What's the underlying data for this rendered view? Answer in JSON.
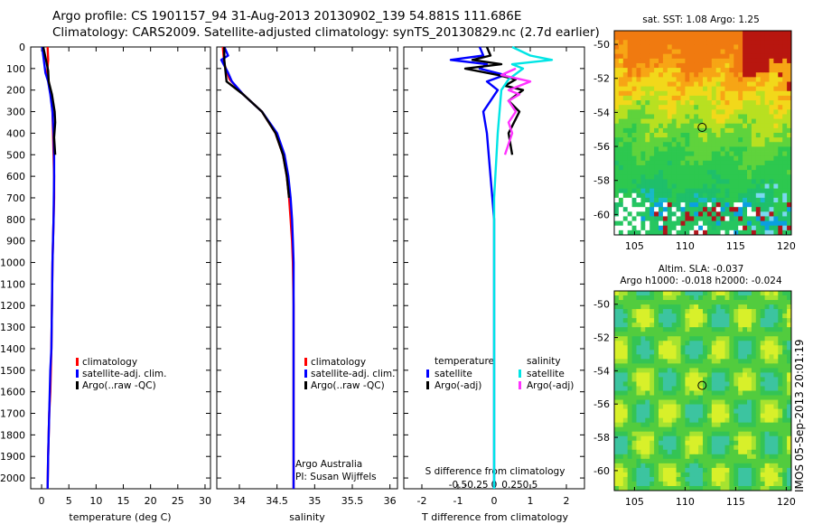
{
  "header": {
    "line1": "Argo profile: CS 1901157_94 31-Aug-2013 20130902_139 54.881S 111.686E",
    "line2": "Climatology: CARS2009. Satellite-adjusted climatology: synTS_20130829.nc (2.7d earlier)"
  },
  "colors": {
    "climatology": "#ff0000",
    "satellite": "#0000ff",
    "argo": "#000000",
    "sal_satellite": "#00e5e5",
    "sal_argo": "#ff33ff"
  },
  "chart_data": [
    {
      "type": "line",
      "name": "temperature-profile",
      "xlabel": "temperature (deg C)",
      "ylabel": "",
      "xlim": [
        -2,
        31
      ],
      "ylim": [
        2050,
        0
      ],
      "xticks": [
        "0",
        "5",
        "10",
        "15",
        "20",
        "25",
        "30"
      ],
      "xtick_values": [
        0,
        5,
        10,
        15,
        20,
        25,
        30
      ],
      "yticks": [
        "0",
        "100",
        "200",
        "300",
        "400",
        "500",
        "600",
        "700",
        "800",
        "900",
        "1000",
        "1100",
        "1200",
        "1300",
        "1400",
        "1500",
        "1600",
        "1700",
        "1800",
        "1900",
        "2000"
      ],
      "ytick_values": [
        0,
        100,
        200,
        300,
        400,
        500,
        600,
        700,
        800,
        900,
        1000,
        1100,
        1200,
        1300,
        1400,
        1500,
        1600,
        1700,
        1800,
        1900,
        2000
      ],
      "legend": [
        "climatology",
        "satellite-adj. clim.",
        "Argo(..raw -QC)"
      ],
      "series": [
        {
          "name": "climatology",
          "x": [
            1.1,
            1.2,
            1.0,
            1.3,
            1.7,
            2.0,
            2.1,
            2.2,
            2.3,
            2.3,
            2.2,
            2.1,
            2.0,
            1.9,
            1.8,
            1.7,
            1.6,
            1.4,
            1.3,
            1.2,
            1.1
          ],
          "y": [
            0,
            60,
            120,
            160,
            220,
            300,
            400,
            500,
            600,
            700,
            800,
            900,
            1000,
            1200,
            1400,
            1500,
            1600,
            1700,
            1800,
            1900,
            2050
          ]
        },
        {
          "name": "satellite-adj. clim.",
          "x": [
            0.1,
            0.4,
            0.7,
            1.2,
            1.6,
            2.0,
            2.2,
            2.3,
            2.3,
            2.2,
            2.1,
            2.0,
            1.9,
            1.8,
            1.6,
            1.5,
            1.3,
            1.2,
            1.1
          ],
          "y": [
            0,
            60,
            120,
            160,
            220,
            300,
            400,
            500,
            600,
            800,
            900,
            1000,
            1200,
            1400,
            1500,
            1600,
            1800,
            1900,
            2050
          ]
        },
        {
          "name": "Argo(..raw -QC)",
          "x": [
            0.3,
            0.8,
            1.2,
            1.3,
            1.9,
            2.4,
            2.5,
            2.3,
            2.5
          ],
          "y": [
            0,
            60,
            110,
            160,
            220,
            300,
            350,
            420,
            500
          ]
        }
      ]
    },
    {
      "type": "line",
      "name": "salinity-profile",
      "xlabel": "salinity",
      "xlim": [
        33.7,
        36.1
      ],
      "ylim": [
        2050,
        0
      ],
      "xticks": [
        "34",
        "34.5",
        "35",
        "35.5",
        "36"
      ],
      "xtick_values": [
        34,
        34.5,
        35,
        35.5,
        36
      ],
      "legend": [
        "climatology",
        "satellite-adj. clim.",
        "Argo(..raw -QC)"
      ],
      "annotation": [
        "Argo Australia",
        "PI: Susan Wijffels"
      ],
      "series": [
        {
          "name": "climatology",
          "x": [
            33.78,
            33.8,
            33.87,
            34.05,
            34.3,
            34.48,
            34.58,
            34.63,
            34.66,
            34.68,
            34.7,
            34.71,
            34.72,
            34.72,
            34.72,
            34.72,
            34.72,
            34.72
          ],
          "y": [
            0,
            80,
            150,
            220,
            300,
            400,
            500,
            600,
            700,
            800,
            900,
            1000,
            1200,
            1400,
            1600,
            1800,
            1900,
            2050
          ]
        },
        {
          "name": "satellite-adj. clim.",
          "x": [
            33.8,
            33.85,
            33.76,
            33.85,
            33.9,
            34.05,
            34.3,
            34.5,
            34.6,
            34.65,
            34.68,
            34.7,
            34.71,
            34.72,
            34.72,
            34.72,
            34.72,
            34.72
          ],
          "y": [
            0,
            40,
            60,
            120,
            160,
            220,
            300,
            400,
            500,
            600,
            700,
            800,
            900,
            1000,
            1200,
            1600,
            1900,
            2050
          ]
        },
        {
          "name": "Argo(..raw -QC)",
          "x": [
            33.8,
            33.8,
            33.83,
            34.05,
            34.3,
            34.48,
            34.58,
            34.63,
            34.66
          ],
          "y": [
            0,
            60,
            160,
            220,
            300,
            400,
            500,
            600,
            700
          ]
        }
      ]
    },
    {
      "type": "line",
      "name": "difference-profile",
      "xlabel": "T difference from climatology",
      "top_label": "S difference from climatology",
      "xlim": [
        -2.5,
        2.5
      ],
      "ylim": [
        2050,
        0
      ],
      "xticks": [
        "-2",
        "-1",
        "0",
        "1",
        "2"
      ],
      "xtick_values": [
        -2,
        -1,
        0,
        1,
        2
      ],
      "sticks": [
        "-0.5",
        "-0.25",
        "0",
        "0.25",
        "0.5"
      ],
      "stick_values": [
        -1,
        -0.5,
        0,
        0.5,
        1
      ],
      "legend_temperature_title": "temperature",
      "legend_salinity_title": "salinity",
      "legend_temperature": [
        "satellite",
        "Argo(-adj)"
      ],
      "legend_salinity": [
        "satellite",
        "Argo(-adj)"
      ],
      "series": [
        {
          "name": "temperature satellite",
          "x": [
            -0.4,
            -0.3,
            -1.2,
            -0.2,
            -0.4,
            0.3,
            -0.2,
            0.1,
            -0.3,
            -0.2,
            -0.1,
            0,
            0,
            0,
            0,
            0
          ],
          "y": [
            0,
            40,
            60,
            80,
            100,
            130,
            160,
            200,
            300,
            400,
            600,
            800,
            1000,
            1400,
            1800,
            2050
          ]
        },
        {
          "name": "temperature Argo(-adj)",
          "x": [
            -0.2,
            -0.1,
            -0.6,
            0.2,
            -0.8,
            0.1,
            0.6,
            0.3,
            0.8,
            0.4,
            0.7,
            0.4,
            0.5
          ],
          "y": [
            0,
            40,
            60,
            80,
            100,
            130,
            150,
            180,
            200,
            250,
            300,
            400,
            500
          ]
        },
        {
          "name": "salinity satellite",
          "x": [
            0.5,
            1.0,
            1.6,
            0.5,
            0.8,
            0.4,
            0.2,
            0.1,
            0,
            0,
            0,
            0
          ],
          "y": [
            0,
            40,
            60,
            80,
            100,
            150,
            200,
            400,
            700,
            1000,
            1500,
            2050
          ]
        },
        {
          "name": "salinity Argo(-adj)",
          "x": [
            0.6,
            0.2,
            1.0,
            0.4,
            0.7,
            0.4,
            0.6,
            0.4,
            0.5,
            0.3
          ],
          "y": [
            100,
            130,
            160,
            200,
            220,
            250,
            300,
            350,
            400,
            500
          ]
        }
      ]
    }
  ],
  "maps": {
    "sst": {
      "title": "sat. SST: 1.08 Argo: 1.25",
      "lat_ticks": [
        "-50",
        "-52",
        "-54",
        "-56",
        "-58",
        "-60"
      ],
      "lon_ticks": [
        "105",
        "110",
        "115",
        "120"
      ],
      "marker_lon": 111.686,
      "marker_lat": -54.881
    },
    "sla": {
      "title1": "Altim. SLA: -0.037",
      "title2": "Argo h1000: -0.018 h2000: -0.024",
      "lat_ticks": [
        "-50",
        "-52",
        "-54",
        "-56",
        "-58",
        "-60"
      ],
      "lon_ticks": [
        "105",
        "110",
        "115",
        "120"
      ],
      "marker_lon": 111.686,
      "marker_lat": -54.881
    }
  },
  "stamp": "IMOS 05-Sep-2013 20:01:19"
}
